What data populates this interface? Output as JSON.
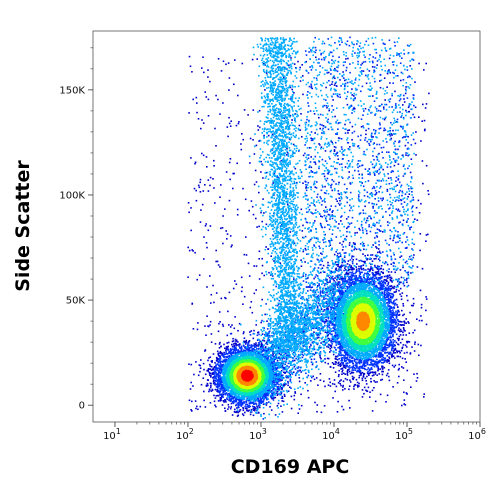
{
  "chart_data": {
    "type": "scatter",
    "xlabel": "CD169 APC",
    "ylabel": "Side Scatter",
    "x_scale": "log",
    "y_scale": "linear",
    "xlim": [
      5,
      1000000
    ],
    "ylim": [
      -8000,
      178000
    ],
    "x_ticks": [
      {
        "value": 10,
        "base": "10",
        "exp": "1"
      },
      {
        "value": 100,
        "base": "10",
        "exp": "2"
      },
      {
        "value": 1000,
        "base": "10",
        "exp": "3"
      },
      {
        "value": 10000,
        "base": "10",
        "exp": "4"
      },
      {
        "value": 100000,
        "base": "10",
        "exp": "5"
      },
      {
        "value": 1000000,
        "base": "10",
        "exp": "6"
      }
    ],
    "y_ticks": [
      {
        "value": 0,
        "label": "0"
      },
      {
        "value": 50000,
        "label": "50K"
      },
      {
        "value": 100000,
        "label": "100K"
      },
      {
        "value": 150000,
        "label": "150K"
      }
    ],
    "grid": false,
    "colormap": [
      "#0000cc",
      "#0033ff",
      "#00aaff",
      "#00e0c0",
      "#40ff40",
      "#ddff00",
      "#ff8800",
      "#ff0000"
    ],
    "series": [
      {
        "values": [
          {
            "x": 650,
            "y": 14000,
            "density": 1.0
          },
          {
            "x": 25000,
            "y": 40000,
            "density": 0.85
          },
          {
            "x": 2000,
            "y": 110000,
            "density": 0.35
          },
          {
            "x": 3000,
            "y": 40000,
            "density": 0.3
          }
        ]
      }
    ]
  }
}
